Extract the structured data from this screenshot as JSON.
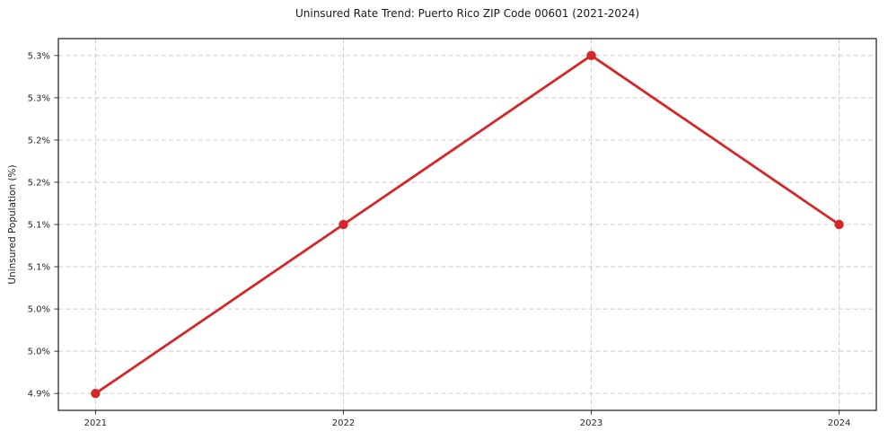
{
  "chart_data": {
    "type": "line",
    "title": "Uninsured Rate Trend: Puerto Rico ZIP Code 00601 (2021-2024)",
    "xlabel": "",
    "ylabel": "Uninsured Population (%)",
    "x": [
      2021,
      2022,
      2023,
      2024
    ],
    "xtick_labels": [
      "2021",
      "2022",
      "2023",
      "2024"
    ],
    "values": [
      4.9,
      5.1,
      5.3,
      5.1
    ],
    "xlim": [
      2020.85,
      2024.15
    ],
    "ylim": [
      4.88,
      5.32
    ],
    "yticks": [
      5.3,
      5.25,
      5.2,
      5.15,
      5.1,
      5.05,
      5.0,
      4.95,
      4.9
    ],
    "ytick_labels": [
      "5.3%",
      "5.3%",
      "5.2%",
      "5.2%",
      "5.1%",
      "5.1%",
      "5.0%",
      "5.0%",
      "4.9%"
    ],
    "grid": true,
    "legend": false,
    "marker": "circle",
    "colors": {
      "line": "#d62728",
      "marker": "#d62728",
      "grid": "#cccccc",
      "spine": "#1a1a1a",
      "tick": "#333333",
      "text": "#262626",
      "background": "#ffffff"
    }
  }
}
